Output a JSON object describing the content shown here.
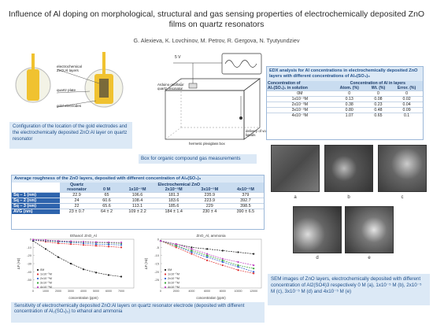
{
  "title": "Influence of Al doping on morphological, structural  and gas sensing properties of electrochemically deposited ZnO films on quartz resonators",
  "authors": "G. Alexieva, K. Lovchinov, M. Petrov, R. Gergova, N. Tyutyundziev",
  "resonator_fig": {
    "labels": {
      "zno": "electrochemical ZnO:Al layers",
      "quartz": "quartz plate",
      "gold": "gold electrodes"
    },
    "caption": "Configuration of the location of the gold electrodes and the electrochemically deposited ZnO:Al layer on quartz resonator"
  },
  "box_fig": {
    "labels": {
      "volt": "5 V",
      "arduino": "Arduino oscillator quartz resonator",
      "delivery": "delivery of volatile liquids",
      "box": "hermetic plexiglass box"
    },
    "caption": "Box for organic compound gas measurements"
  },
  "edx": {
    "title": "EDX analysis for Al concentrations in electrochemically deposited ZnO layers with different concentrations of Al₂(SO₄)₃",
    "head1": "Concentration of",
    "head1b": "Al₂(SO₄)₃ in solution",
    "head2": "Concentration of Al in layers",
    "cols": [
      "Atom. (%)",
      "Wt. (%)",
      "Error. (%)"
    ],
    "rows": [
      [
        "0M",
        "0",
        "0",
        "0"
      ],
      [
        "1x10⁻⁵M",
        "0.13",
        "0.08",
        "0.02"
      ],
      [
        "2x10⁻⁵M",
        "0.38",
        "0.23",
        "0.04"
      ],
      [
        "3x10⁻⁵M",
        "0.80",
        "0.48",
        "0.09"
      ],
      [
        "4x10⁻⁵M",
        "1.07",
        "0.65",
        "0.1"
      ]
    ]
  },
  "roughness": {
    "title": "Average roughness of the ZnO layers, deposited with different concentration  of Al₂(SO₄)₃",
    "quartz_head": "Quartz resonator",
    "group_head": "Electrochemical ZnO",
    "cols": [
      "0 M",
      "1x10⁻⁵M",
      "2x10⁻⁵M",
      "3x10⁻⁵M",
      "4x10⁻⁵M"
    ],
    "rows": [
      [
        "Sq – 1 (nm)",
        "22.9",
        "65",
        "106.6",
        "181.3",
        "235.9",
        "379"
      ],
      [
        "Sq – 2 (nm)",
        "24",
        "60.6",
        "108.4",
        "183.6",
        "223.9",
        "392.7"
      ],
      [
        "Sq – 3 (nm)",
        "22",
        "65.6",
        "113.1",
        "185.6",
        "229",
        "398.5"
      ],
      [
        "AVG (nm)",
        "23 ± 0.7",
        "64 ± 2",
        "109 ± 2.2",
        "184 ± 1.4",
        "230 ± 4",
        "390 ± 6.5"
      ]
    ]
  },
  "sem": {
    "labels": [
      "a",
      "b",
      "c",
      "d",
      "e"
    ],
    "caption": "SEM images of ZnO layers, electrochemically deposited with different concentration of Al2(SO4)3 respectively 0 M (a), 1x10⁻⁵ M (b), 2x10⁻⁵ M (c), 3x10⁻⁵ M (d) and 4x10⁻⁵ M (e)"
  },
  "sensing_caption": "Sensitivity of electrochemically deposited ZnO:Al layers on quartz resonator electrode (deposited with different concentration of Al₂(SO₄)₃) to ethanol and ammonia",
  "chart_data": [
    {
      "type": "line",
      "title": "Ethanol: ZnO_Al",
      "xlabel": "concentration (ppm)",
      "ylabel": "ΔF (Hz)",
      "x": [
        0,
        1000,
        2000,
        3000,
        4000,
        5000,
        6000,
        7000
      ],
      "xlim": [
        0,
        8000
      ],
      "ylim": [
        -60,
        0
      ],
      "yticks": [
        0,
        -10,
        -20,
        -30,
        -40,
        -50
      ],
      "series": [
        {
          "name": "0M",
          "color": "#222222",
          "values": [
            -2,
            -12,
            -22,
            -30,
            -37,
            -41,
            -44,
            -46
          ]
        },
        {
          "name": "1x10⁻⁵M",
          "color": "#e03030",
          "values": [
            -1,
            -3,
            -5,
            -6,
            -7,
            -8,
            -9,
            -10
          ]
        },
        {
          "name": "2x10⁻⁵M",
          "color": "#3060d0",
          "values": [
            -1,
            -2,
            -3,
            -4,
            -5,
            -6,
            -6.5,
            -7
          ]
        },
        {
          "name": "3x10⁻⁵M",
          "color": "#30a030",
          "values": [
            -0.5,
            -1.5,
            -2.5,
            -3,
            -3.5,
            -4,
            -4.5,
            -5
          ]
        },
        {
          "name": "4x10⁻⁵M",
          "color": "#c040c0",
          "values": [
            -0.5,
            -1,
            -2,
            -2.5,
            -3,
            -3.5,
            -3.8,
            -4
          ]
        }
      ]
    },
    {
      "type": "line",
      "title": "ZnO_Al, ammonia",
      "xlabel": "concentration (ppm)",
      "ylabel": "ΔF (Hz)",
      "x": [
        0,
        2000,
        4000,
        6000,
        8000,
        10000,
        12000
      ],
      "xlim": [
        0,
        13000
      ],
      "ylim": [
        -30,
        0
      ],
      "yticks": [
        0,
        -5,
        -10,
        -15,
        -20,
        -25
      ],
      "series": [
        {
          "name": "0M",
          "color": "#222222",
          "values": [
            -1,
            -3,
            -5,
            -6,
            -7,
            -8,
            -9
          ]
        },
        {
          "name": "1x10⁻⁵M",
          "color": "#e03030",
          "values": [
            -1,
            -5,
            -9,
            -13,
            -16,
            -19,
            -21
          ]
        },
        {
          "name": "2x10⁻⁵M",
          "color": "#3060d0",
          "values": [
            -1,
            -4,
            -8,
            -11,
            -14,
            -17,
            -20
          ]
        },
        {
          "name": "3x10⁻⁵M",
          "color": "#30a030",
          "values": [
            -1,
            -4,
            -7,
            -10,
            -13,
            -16,
            -18
          ]
        },
        {
          "name": "4x10⁻⁵M",
          "color": "#c040c0",
          "values": [
            -1,
            -3,
            -6,
            -9,
            -12,
            -14,
            -16
          ]
        }
      ]
    }
  ]
}
